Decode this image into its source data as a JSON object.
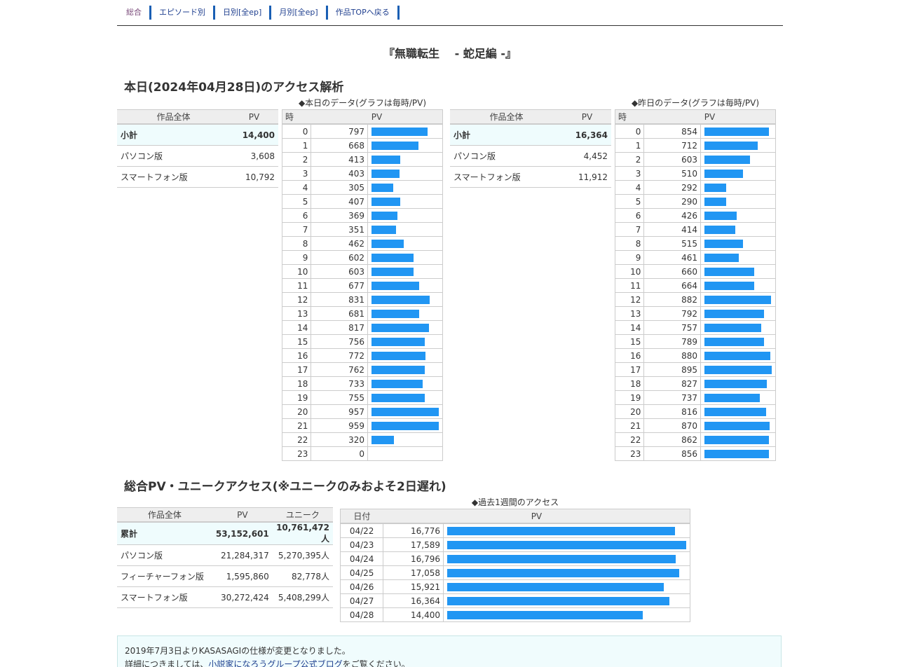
{
  "nav": [
    "総合",
    "エピソード別",
    "日別[全ep]",
    "月別[全ep]",
    "作品TOPへ戻る"
  ],
  "title": "『無職転生　 - 蛇足編 -』",
  "today_heading": "本日(2024年04月28日)のアクセス解析",
  "today": {
    "caption": "◆本日のデータ(グラフは毎時/PV)",
    "summary_headers": [
      "作品全体",
      "PV"
    ],
    "summary": [
      [
        "小計",
        "14,400"
      ],
      [
        "パソコン版",
        "3,608"
      ],
      [
        "スマートフォン版",
        "10,792"
      ]
    ],
    "hour_headers": [
      "時",
      "PV"
    ],
    "hours": [
      797,
      668,
      413,
      403,
      305,
      407,
      369,
      351,
      462,
      602,
      603,
      677,
      831,
      681,
      817,
      756,
      772,
      762,
      733,
      755,
      957,
      959,
      320,
      0
    ]
  },
  "yesterday": {
    "caption": "◆昨日のデータ(グラフは毎時/PV)",
    "summary_headers": [
      "作品全体",
      "PV"
    ],
    "summary": [
      [
        "小計",
        "16,364"
      ],
      [
        "パソコン版",
        "4,452"
      ],
      [
        "スマートフォン版",
        "11,912"
      ]
    ],
    "hour_headers": [
      "時",
      "PV"
    ],
    "hours": [
      854,
      712,
      603,
      510,
      292,
      290,
      426,
      414,
      515,
      461,
      660,
      664,
      882,
      792,
      757,
      789,
      880,
      895,
      827,
      737,
      816,
      870,
      862,
      856
    ]
  },
  "total_heading": "総合PV・ユニークアクセス(※ユニークのみおよそ2日遅れ)",
  "total": {
    "headers": [
      "作品全体",
      "PV",
      "ユニーク"
    ],
    "rows": [
      [
        "累計",
        "53,152,601",
        "10,761,472人"
      ],
      [
        "パソコン版",
        "21,284,317",
        "5,270,395人"
      ],
      [
        "フィーチャーフォン版",
        "1,595,860",
        "82,778人"
      ],
      [
        "スマートフォン版",
        "30,272,424",
        "5,408,299人"
      ]
    ]
  },
  "week": {
    "caption": "◆過去1週間のアクセス",
    "headers": [
      "日付",
      "PV"
    ],
    "rows": [
      [
        "04/22",
        16776
      ],
      [
        "04/23",
        17589
      ],
      [
        "04/24",
        16796
      ],
      [
        "04/25",
        17058
      ],
      [
        "04/26",
        15921
      ],
      [
        "04/27",
        16364
      ],
      [
        "04/28",
        14400
      ]
    ]
  },
  "footer": {
    "line1": "2019年7月3日よりKASASAGIの仕様が変更となりました。",
    "line2_pre": "詳細につきましては、",
    "link": "小説家になろうグループ公式ブログ",
    "line2_post": "をご覧ください。"
  },
  "colors": {
    "bar": "#2196f3",
    "subtotal_bg": "#effcfd",
    "header_bg": "#eeeeee"
  }
}
